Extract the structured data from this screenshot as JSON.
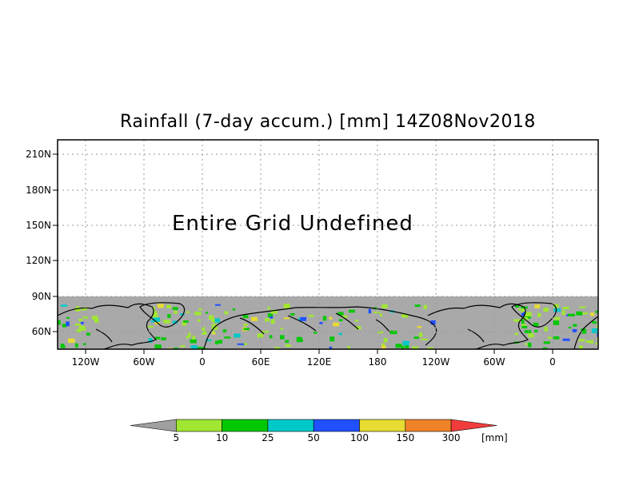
{
  "title": "Rainfall (7-day accum.) [mm] 14Z08Nov2018",
  "message": "Entire Grid Undefined",
  "y_ticks": [
    "210N",
    "180N",
    "150N",
    "120N",
    "90N",
    "60N"
  ],
  "x_ticks": [
    "120W",
    "60W",
    "0",
    "60E",
    "120E",
    "180",
    "120W",
    "60W",
    "0"
  ],
  "colorbar": {
    "unit": "[mm]",
    "thresholds": [
      "5",
      "10",
      "25",
      "50",
      "100",
      "150",
      "300"
    ],
    "colors": [
      "#a0a0a0",
      "#a0e632",
      "#00c800",
      "#00c8c8",
      "#2050ff",
      "#e6dc32",
      "#f08228",
      "#f03c3c"
    ]
  },
  "colors": {
    "undefined_area": "#a9a9a9",
    "coastline": "#000000",
    "grid": "#9a9a9a"
  }
}
